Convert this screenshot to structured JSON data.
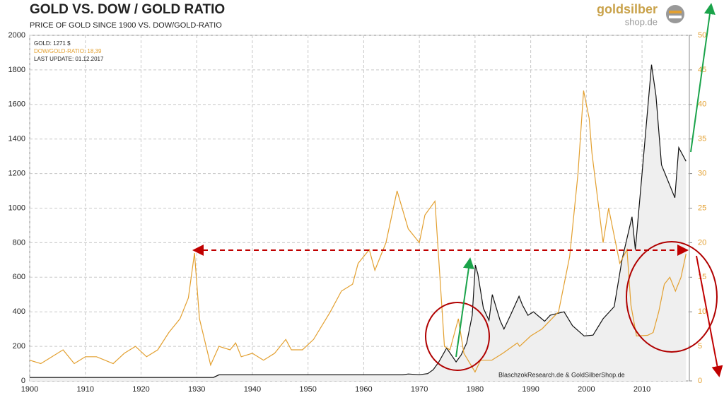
{
  "chart_data": {
    "type": "line",
    "title": "GOLD VS. DOW / GOLD  RATIO",
    "subtitle": "PRICE OF GOLD SINCE 1900 VS. DOW/GOLD-RATIO",
    "logo": [
      "goldsilber",
      "shop.de"
    ],
    "last_update": "LAST UPDATE: 01.12.2017",
    "credit": "BlaschzokResearch.de  & GoldSilberShop.de",
    "xlim": [
      1900,
      2018.5
    ],
    "xticks": [
      1900,
      1910,
      1920,
      1930,
      1940,
      1950,
      1960,
      1970,
      1980,
      1990,
      2000,
      2010
    ],
    "ylim": [
      0,
      2000
    ],
    "yticks": [
      0,
      200,
      400,
      600,
      800,
      1000,
      1200,
      1400,
      1600,
      1800,
      2000
    ],
    "y2lim": [
      0,
      50
    ],
    "y2ticks": [
      0,
      5,
      10,
      15,
      20,
      25,
      30,
      35,
      40,
      45,
      50
    ],
    "grid": true,
    "series": [
      {
        "name": "GOLD: 1271 $",
        "color": "#111111",
        "fill": "#efefef",
        "x": [
          1900,
          1933,
          1934,
          1967,
          1968,
          1970,
          1971.5,
          1972.5,
          1973.5,
          1974.9,
          1976.6,
          1977.5,
          1978.5,
          1979.5,
          1980.05,
          1980.5,
          1981.5,
          1982.5,
          1983.1,
          1984.5,
          1985.2,
          1986.5,
          1987.9,
          1988.5,
          1989.5,
          1990.5,
          1992.5,
          1993.5,
          1996,
          1997.5,
          1999.6,
          2001.2,
          2003,
          2005,
          2006.4,
          2008.2,
          2008.8,
          2010,
          2011.7,
          2012.5,
          2013.5,
          2015.9,
          2016.6,
          2017.9
        ],
        "values": [
          20,
          20,
          35,
          35,
          40,
          36,
          42,
          65,
          110,
          190,
          110,
          150,
          220,
          380,
          670,
          620,
          420,
          350,
          500,
          350,
          300,
          390,
          490,
          440,
          380,
          400,
          345,
          380,
          400,
          320,
          260,
          265,
          360,
          430,
          700,
          950,
          760,
          1200,
          1830,
          1650,
          1250,
          1060,
          1350,
          1271
        ]
      },
      {
        "name": "DOW/GOLD-RATIO: 18,39",
        "color": "#e3a030",
        "axis": "y2",
        "x": [
          1900,
          1902,
          1904,
          1906,
          1908,
          1910,
          1912,
          1915,
          1917,
          1919,
          1921,
          1923,
          1925,
          1927,
          1928.5,
          1929.6,
          1930.5,
          1932.5,
          1934,
          1936,
          1937,
          1938,
          1940,
          1942,
          1944,
          1946,
          1947,
          1949,
          1951,
          1954,
          1956,
          1958,
          1959,
          1961,
          1962,
          1964,
          1966,
          1968,
          1970,
          1971,
          1972.8,
          1974.5,
          1975.5,
          1977,
          1978,
          1980,
          1981,
          1983,
          1985,
          1987.6,
          1988,
          1990,
          1992,
          1995,
          1997,
          1998.5,
          1999.5,
          2000.5,
          2001,
          2003,
          2004,
          2006,
          2007.3,
          2008,
          2009,
          2011,
          2012,
          2013,
          2014,
          2015,
          2016,
          2017,
          2017.9
        ],
        "values": [
          3,
          2.5,
          3.5,
          4.5,
          2.5,
          3.5,
          3.5,
          2.5,
          4,
          5,
          3.5,
          4.5,
          7,
          9,
          12,
          18.5,
          9,
          2.3,
          5,
          4.5,
          5.5,
          3.5,
          4,
          3,
          4,
          6,
          4.5,
          4.5,
          6,
          10,
          13,
          14,
          17,
          19,
          16,
          20,
          27.5,
          22,
          20,
          24,
          26,
          5,
          4.5,
          9,
          4,
          1.3,
          3,
          3,
          4,
          5.5,
          5,
          6.5,
          7.5,
          10,
          18,
          30,
          42,
          38,
          33,
          20,
          25,
          17,
          19,
          11,
          6.5,
          6.6,
          7,
          10,
          14,
          15,
          13,
          15,
          18.39
        ]
      }
    ]
  }
}
